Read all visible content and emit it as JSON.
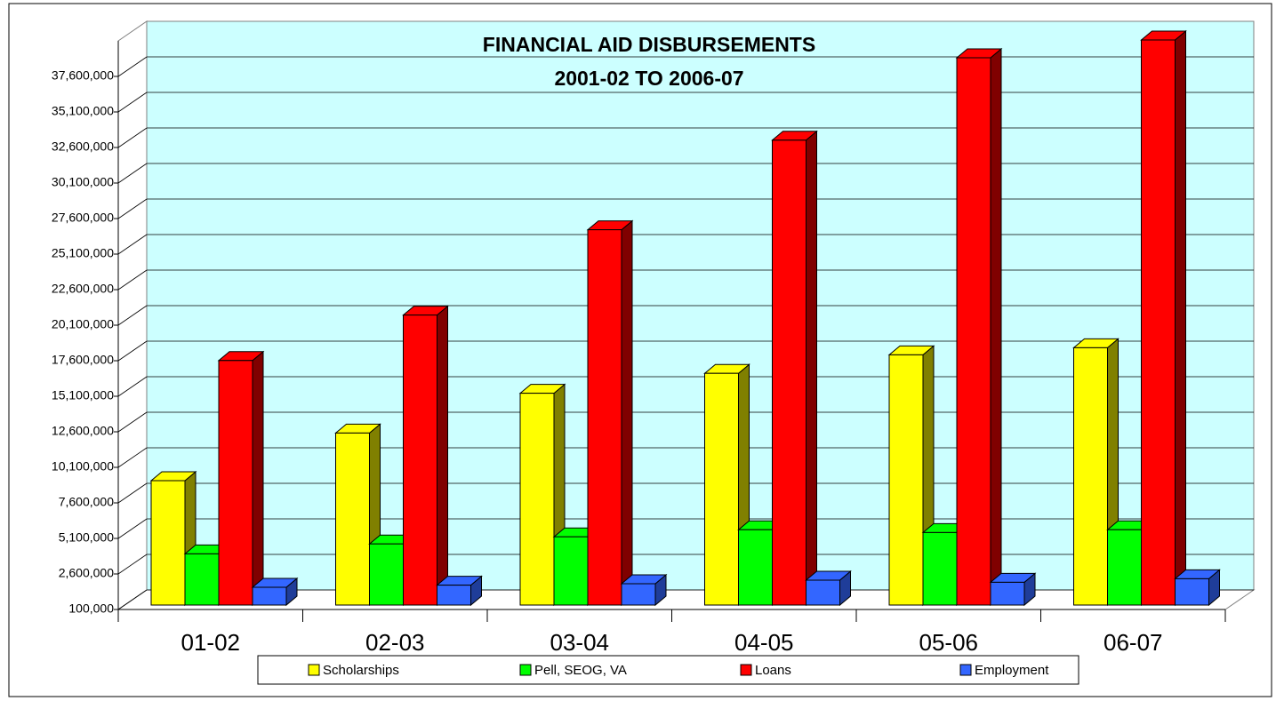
{
  "chart_data": {
    "type": "bar3d",
    "title": "FINANCIAL AID DISBURSEMENTS",
    "subtitle": "2001-02 TO 2006-07",
    "categories": [
      "01-02",
      "02-03",
      "03-04",
      "04-05",
      "05-06",
      "06-07"
    ],
    "series": [
      {
        "name": "Scholarships",
        "color": "#ffff00",
        "side": "#808000",
        "values": [
          8850000,
          12200000,
          15000000,
          16400000,
          17700000,
          18200000
        ]
      },
      {
        "name": "Pell, SEOG, VA",
        "color": "#00ff00",
        "side": "#008000",
        "values": [
          3700000,
          4400000,
          4900000,
          5400000,
          5200000,
          5400000
        ]
      },
      {
        "name": "Loans",
        "color": "#ff0000",
        "side": "#800000",
        "values": [
          17300000,
          20500000,
          26500000,
          32800000,
          38600000,
          39850000
        ]
      },
      {
        "name": "Employment",
        "color": "#3366ff",
        "side": "#1f3d99",
        "values": [
          1350000,
          1500000,
          1600000,
          1850000,
          1700000,
          1950000
        ]
      }
    ],
    "ylim": [
      100000,
      40100000
    ],
    "yticks": [
      {
        "value": 100000,
        "label": "100,000"
      },
      {
        "value": 2600000,
        "label": "2,600,000"
      },
      {
        "value": 5100000,
        "label": "5,100,000"
      },
      {
        "value": 7600000,
        "label": "7,600,000"
      },
      {
        "value": 10100000,
        "label": "10,100,000"
      },
      {
        "value": 12600000,
        "label": "12,600,000"
      },
      {
        "value": 15100000,
        "label": "15,100,000"
      },
      {
        "value": 17600000,
        "label": "17,600,000"
      },
      {
        "value": 20100000,
        "label": "20,100,000"
      },
      {
        "value": 22600000,
        "label": "22,600,000"
      },
      {
        "value": 25100000,
        "label": "25,100,000"
      },
      {
        "value": 27600000,
        "label": "27,600,000"
      },
      {
        "value": 30100000,
        "label": "30,100,000"
      },
      {
        "value": 32600000,
        "label": "32,600,000"
      },
      {
        "value": 35100000,
        "label": "35,100,000"
      },
      {
        "value": 37600000,
        "label": "37,600,000"
      }
    ],
    "grid": true
  }
}
